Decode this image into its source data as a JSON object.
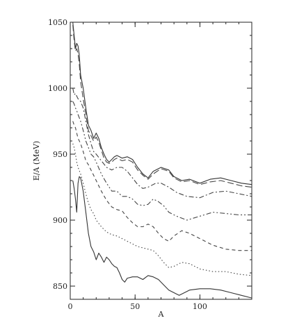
{
  "chart_data": {
    "type": "line",
    "title": "",
    "xlabel": "A",
    "ylabel": "E/A (MeV)",
    "xlim": [
      0,
      140
    ],
    "ylim": [
      840,
      1050
    ],
    "grid": false,
    "legend": "none",
    "x_ticks": [
      0,
      50,
      100
    ],
    "x_tick_labels": [
      "0",
      "50",
      "100"
    ],
    "y_ticks": [
      850,
      900,
      950,
      1000,
      1050
    ],
    "y_tick_labels": [
      "850",
      "900",
      "950",
      "1000",
      "1050"
    ],
    "series": [
      {
        "style": "solid",
        "color": "#333333",
        "x": [
          2,
          3,
          4,
          5,
          6,
          7,
          8,
          10,
          12,
          14,
          16,
          18,
          20,
          22,
          24,
          26,
          28,
          30,
          32,
          34,
          36,
          38,
          40,
          44,
          48,
          52,
          56,
          60,
          64,
          70,
          76,
          80,
          86,
          92,
          100,
          108,
          116,
          124,
          132,
          140
        ],
        "y": [
          1050,
          1040,
          1030,
          1034,
          1032,
          1025,
          1010,
          1000,
          985,
          972,
          968,
          962,
          966,
          962,
          955,
          950,
          946,
          944,
          946,
          948,
          949,
          948,
          947,
          948,
          946,
          940,
          935,
          932,
          937,
          940,
          938,
          933,
          930,
          931,
          928,
          931,
          932,
          930,
          928,
          927
        ]
      },
      {
        "style": "dashed",
        "color": "#444444",
        "x": [
          2,
          3,
          4,
          5,
          6,
          7,
          8,
          10,
          12,
          14,
          16,
          18,
          20,
          22,
          24,
          26,
          28,
          30,
          32,
          34,
          36,
          38,
          40,
          44,
          48,
          52,
          56,
          60,
          64,
          70,
          76,
          80,
          86,
          92,
          100,
          108,
          116,
          124,
          132,
          140
        ],
        "y": [
          1048,
          1036,
          1028,
          1030,
          1026,
          1018,
          1005,
          992,
          980,
          968,
          964,
          960,
          963,
          959,
          953,
          947,
          944,
          943,
          944,
          946,
          947,
          946,
          945,
          946,
          944,
          938,
          934,
          931,
          935,
          939,
          937,
          932,
          929,
          930,
          927,
          929,
          930,
          928,
          926,
          925
        ]
      },
      {
        "style": "dashdot",
        "color": "#444444",
        "x": [
          2,
          3,
          4,
          5,
          6,
          8,
          10,
          12,
          14,
          16,
          18,
          20,
          24,
          28,
          32,
          36,
          40,
          44,
          48,
          52,
          56,
          60,
          66,
          70,
          76,
          82,
          90,
          100,
          110,
          120,
          130,
          140
        ],
        "y": [
          1000,
          995,
          996,
          994,
          992,
          990,
          985,
          975,
          965,
          958,
          952,
          950,
          945,
          940,
          938,
          940,
          940,
          937,
          932,
          927,
          924,
          925,
          928,
          928,
          925,
          921,
          918,
          917,
          921,
          922,
          920,
          918
        ]
      },
      {
        "style": "dashdotdot",
        "color": "#444444",
        "x": [
          2,
          3,
          4,
          5,
          6,
          8,
          10,
          12,
          14,
          16,
          18,
          20,
          24,
          28,
          32,
          36,
          40,
          44,
          48,
          52,
          56,
          60,
          64,
          68,
          72,
          76,
          82,
          90,
          100,
          110,
          120,
          130,
          140
        ],
        "y": [
          990,
          988,
          985,
          983,
          980,
          975,
          968,
          960,
          955,
          950,
          948,
          944,
          935,
          928,
          922,
          922,
          918,
          918,
          916,
          912,
          911,
          912,
          916,
          914,
          911,
          906,
          903,
          900,
          903,
          906,
          905,
          904,
          904
        ]
      },
      {
        "style": "longdash",
        "color": "#444444",
        "x": [
          2,
          3,
          4,
          5,
          6,
          8,
          10,
          12,
          14,
          16,
          18,
          20,
          24,
          28,
          32,
          36,
          40,
          44,
          48,
          52,
          56,
          60,
          64,
          68,
          72,
          76,
          80,
          86,
          92,
          100,
          110,
          120,
          130,
          140
        ],
        "y": [
          975,
          972,
          970,
          966,
          962,
          958,
          952,
          945,
          942,
          938,
          934,
          930,
          922,
          915,
          910,
          908,
          907,
          902,
          898,
          895,
          895,
          897,
          895,
          890,
          886,
          884,
          888,
          892,
          890,
          886,
          881,
          878,
          877,
          877
        ]
      },
      {
        "style": "dotted",
        "color": "#444444",
        "x": [
          2,
          3,
          4,
          5,
          6,
          8,
          10,
          12,
          14,
          16,
          18,
          20,
          24,
          28,
          32,
          36,
          40,
          44,
          48,
          52,
          56,
          60,
          64,
          68,
          72,
          76,
          80,
          86,
          92,
          100,
          110,
          120,
          130,
          140
        ],
        "y": [
          958,
          955,
          950,
          944,
          940,
          935,
          928,
          920,
          913,
          908,
          905,
          900,
          895,
          891,
          889,
          888,
          886,
          884,
          882,
          880,
          879,
          878,
          877,
          873,
          868,
          864,
          865,
          868,
          867,
          863,
          861,
          861,
          859,
          858
        ]
      },
      {
        "style": "solid",
        "color": "#333333",
        "x": [
          2,
          3,
          4,
          5,
          6,
          7,
          8,
          10,
          12,
          14,
          16,
          18,
          20,
          22,
          24,
          26,
          28,
          30,
          32,
          34,
          36,
          38,
          40,
          42,
          44,
          48,
          52,
          56,
          60,
          64,
          68,
          72,
          76,
          80,
          84,
          88,
          92,
          100,
          108,
          116,
          124,
          132,
          140
        ],
        "y": [
          930,
          924,
          916,
          906,
          928,
          933,
          932,
          922,
          906,
          890,
          880,
          876,
          870,
          875,
          872,
          868,
          872,
          870,
          867,
          865,
          864,
          860,
          855,
          853,
          856,
          857,
          857,
          855,
          858,
          857,
          855,
          851,
          847,
          845,
          843,
          845,
          847,
          848,
          848,
          847,
          845,
          843,
          841
        ]
      }
    ]
  }
}
